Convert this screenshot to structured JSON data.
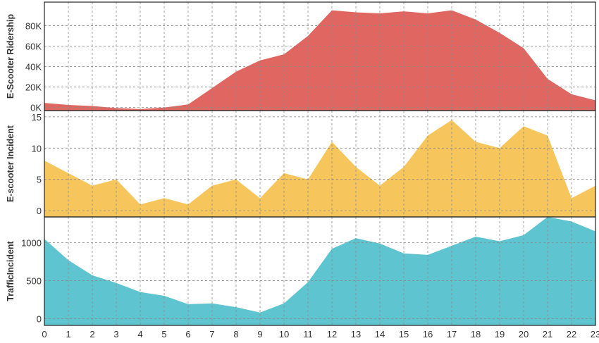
{
  "chart_data": {
    "type": "area",
    "x": [
      0,
      1,
      2,
      3,
      4,
      5,
      6,
      7,
      8,
      9,
      10,
      11,
      12,
      13,
      14,
      15,
      16,
      17,
      18,
      19,
      20,
      21,
      22,
      23
    ],
    "x_ticks": [
      "0",
      "1",
      "2",
      "3",
      "4",
      "5",
      "6",
      "7",
      "8",
      "9",
      "10",
      "11",
      "12",
      "13",
      "14",
      "15",
      "16",
      "17",
      "18",
      "19",
      "20",
      "21",
      "22",
      "23"
    ],
    "grid": true,
    "panels": [
      {
        "ylabel": "E-Scooter Ridership",
        "color": "#e06661",
        "ylim": [
          -3000,
          103000
        ],
        "ticks": [
          {
            "v": 0,
            "label": "0K"
          },
          {
            "v": 20000,
            "label": "20K"
          },
          {
            "v": 40000,
            "label": "40K"
          },
          {
            "v": 60000,
            "label": "60K"
          },
          {
            "v": 80000,
            "label": "80K"
          }
        ],
        "values": [
          4500,
          2500,
          1500,
          -500,
          -1500,
          0,
          3000,
          19000,
          35000,
          46000,
          52000,
          70000,
          95000,
          93000,
          92000,
          94000,
          92000,
          95000,
          86000,
          73000,
          58000,
          28000,
          13000,
          7000
        ]
      },
      {
        "ylabel": "E-scooter Incident",
        "color": "#f6c65c",
        "ylim": [
          -1,
          16
        ],
        "ticks": [
          {
            "v": 0,
            "label": "0"
          },
          {
            "v": 5,
            "label": "5"
          },
          {
            "v": 10,
            "label": "10"
          },
          {
            "v": 15,
            "label": "15"
          }
        ],
        "values": [
          8,
          6,
          4,
          5,
          1,
          2,
          1,
          4,
          5,
          2,
          6,
          5,
          11,
          7,
          4,
          7,
          12,
          14.5,
          11,
          10,
          13.5,
          12,
          2,
          4
        ]
      },
      {
        "ylabel": "TrafficIncident",
        "color": "#5ec4cf",
        "ylim": [
          -90,
          1340
        ],
        "ticks": [
          {
            "v": 0,
            "label": "0"
          },
          {
            "v": 500,
            "label": "500"
          },
          {
            "v": 1000,
            "label": "1000"
          }
        ],
        "values": [
          1050,
          770,
          570,
          470,
          350,
          300,
          190,
          200,
          150,
          80,
          200,
          480,
          920,
          1060,
          990,
          860,
          840,
          960,
          1080,
          1020,
          1100,
          1340,
          1280,
          1150
        ]
      }
    ]
  }
}
